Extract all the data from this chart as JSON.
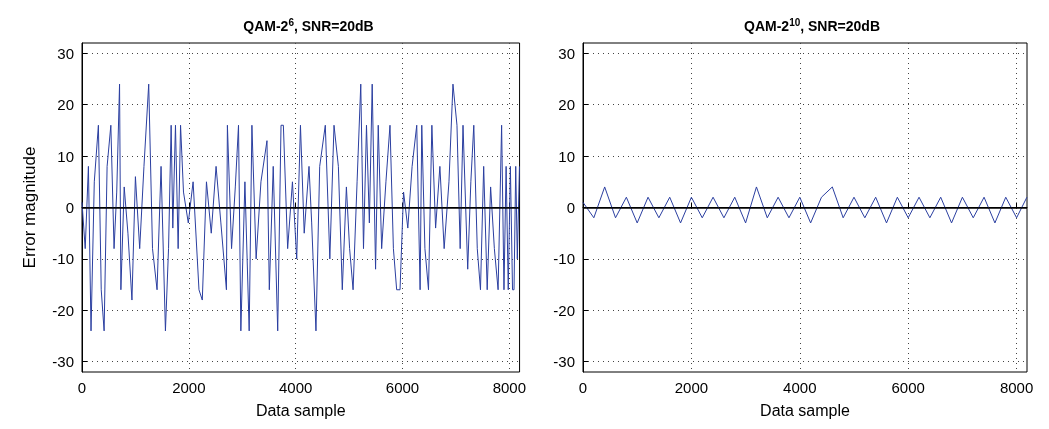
{
  "chart_data": [
    {
      "type": "line",
      "title": "QAM-2$^{6}$, SNR=20dB",
      "xlabel": "Data sample",
      "ylabel": "Error magnitude",
      "xlim": [
        0,
        8192
      ],
      "xticks": [
        0,
        2000,
        4000,
        6000,
        8000
      ],
      "ylim": [
        -32,
        32
      ],
      "yticks": [
        -30,
        -20,
        -10,
        0,
        10,
        20,
        30
      ],
      "grid": true,
      "marker": "none",
      "line_style": "solid",
      "ref_lines": [
        {
          "axis": "y",
          "value": 0,
          "color": "#000000"
        }
      ],
      "series": [
        {
          "color": "#2b3fa0",
          "x": [
            0,
            60,
            120,
            169,
            230,
            307,
            360,
            414,
            470,
            540,
            600,
            650,
            703,
            728,
            790,
            860,
            935,
            1000,
            1080,
            1160,
            1249,
            1320,
            1405,
            1480,
            1562,
            1620,
            1669,
            1700,
            1750,
            1800,
            1845,
            1900,
            1990,
            2080,
            2190,
            2252,
            2330,
            2420,
            2510,
            2600,
            2704,
            2722,
            2800,
            2870,
            2930,
            2974,
            3050,
            3130,
            3181,
            3260,
            3350,
            3463,
            3507,
            3580,
            3664,
            3726,
            3770,
            3850,
            3940,
            4020,
            4090,
            4160,
            4250,
            4300,
            4380,
            4450,
            4555,
            4640,
            4718,
            4800,
            4873,
            4950,
            5010,
            5075,
            5150,
            5219,
            5270,
            5326,
            5380,
            5433,
            5496,
            5546,
            5610,
            5690,
            5766,
            5830,
            5891,
            5954,
            6020,
            6100,
            6180,
            6267,
            6330,
            6361,
            6420,
            6487,
            6550,
            6620,
            6700,
            6780,
            6870,
            6945,
            7020,
            7080,
            7133,
            7221,
            7280,
            7335,
            7400,
            7460,
            7520,
            7586,
            7650,
            7720,
            7790,
            7856,
            7900,
            7940,
            7980,
            8020,
            8060,
            8088,
            8120,
            8150,
            8190
          ],
          "values": [
            1,
            -8,
            8,
            -24,
            5,
            16,
            -16,
            -24,
            8,
            16,
            -8,
            3,
            24,
            -16,
            4,
            -5,
            -18,
            6,
            -8,
            8,
            24,
            -8,
            -16,
            8,
            -24,
            -8,
            16,
            -4,
            16,
            -8,
            16,
            3,
            -3,
            5,
            -16,
            -18,
            5,
            -5,
            8,
            -3,
            -16,
            16,
            -8,
            4,
            16,
            -24,
            5,
            -24,
            16,
            -10,
            5,
            13,
            -16,
            8,
            -24,
            16,
            16,
            -8,
            5,
            -10,
            16,
            -5,
            8,
            -3,
            -24,
            8,
            16,
            -10,
            16,
            8,
            -16,
            4,
            -8,
            -16,
            5,
            24,
            -8,
            16,
            -3,
            24,
            -12,
            16,
            -8,
            5,
            16,
            -8,
            -16,
            -16,
            3,
            -4,
            8,
            16,
            -16,
            16,
            -8,
            -16,
            16,
            -4,
            8,
            -8,
            5,
            24,
            16,
            -8,
            16,
            -12,
            5,
            16,
            -8,
            -16,
            8,
            -16,
            4,
            -8,
            -16,
            16,
            -16,
            8,
            -16,
            8,
            -16,
            -16,
            8,
            -10,
            8
          ]
        }
      ]
    },
    {
      "type": "line",
      "title": "QAM-2$^{10}$, SNR=20dB",
      "xlabel": "Data sample",
      "xlim": [
        0,
        8192
      ],
      "xticks": [
        0,
        2000,
        4000,
        6000,
        8000
      ],
      "ylim": [
        -32,
        32
      ],
      "yticks": [
        -30,
        -20,
        -10,
        0,
        10,
        20,
        30
      ],
      "grid": true,
      "marker": "none",
      "line_style": "solid",
      "ref_lines": [
        {
          "axis": "y",
          "value": 0,
          "color": "#000000"
        }
      ],
      "series": [
        {
          "color": "#2b3fa0",
          "x": [
            0,
            200,
            400,
            600,
            800,
            1000,
            1200,
            1400,
            1600,
            1800,
            2000,
            2200,
            2400,
            2600,
            2800,
            3000,
            3200,
            3400,
            3600,
            3800,
            4000,
            4200,
            4400,
            4600,
            4800,
            5000,
            5200,
            5400,
            5600,
            5800,
            6000,
            6200,
            6400,
            6600,
            6800,
            7000,
            7200,
            7400,
            7600,
            7800,
            8000,
            8190
          ],
          "values": [
            1,
            -2,
            4,
            -2,
            2,
            -3,
            2,
            -2,
            2,
            -3,
            2,
            -2,
            2,
            -2,
            2,
            -3,
            4,
            -2,
            2,
            -2,
            2,
            -3,
            2,
            4,
            -2,
            2,
            -2,
            2,
            -3,
            2,
            -2,
            2,
            -2,
            2,
            -3,
            2,
            -2,
            2,
            -3,
            2,
            -2,
            2
          ]
        }
      ]
    }
  ]
}
